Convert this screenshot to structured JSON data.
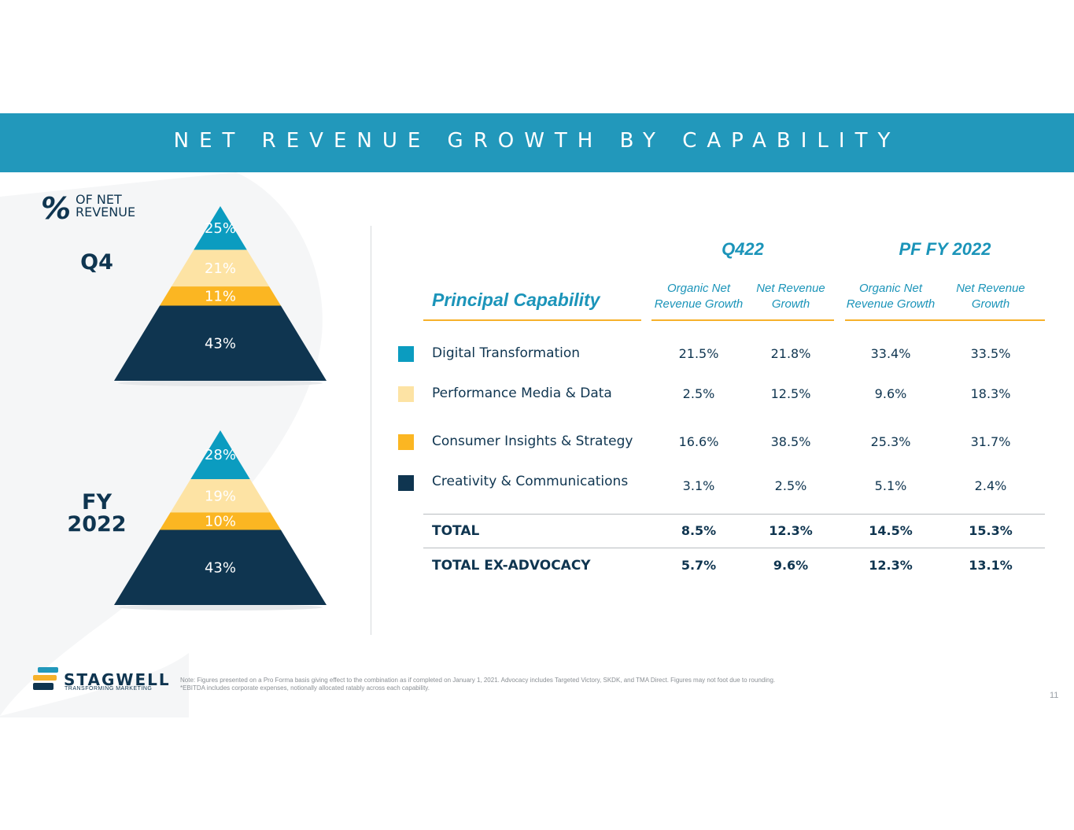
{
  "header": {
    "title": "NET REVENUE GROWTH BY CAPABILITY"
  },
  "percent_of_net_revenue": {
    "symbol": "%",
    "label": "OF NET REVENUE",
    "pyramids": [
      {
        "period": "Q4",
        "segments": [
          {
            "name": "Digital Transformation",
            "label": "25%",
            "value": 25
          },
          {
            "name": "Performance Media & Data",
            "label": "21%",
            "value": 21
          },
          {
            "name": "Consumer Insights & Strategy",
            "label": "11%",
            "value": 11
          },
          {
            "name": "Creativity & Communications",
            "label": "43%",
            "value": 43
          }
        ]
      },
      {
        "period": "FY 2022",
        "segments": [
          {
            "name": "Digital Transformation",
            "label": "28%",
            "value": 28
          },
          {
            "name": "Performance Media & Data",
            "label": "19%",
            "value": 19
          },
          {
            "name": "Consumer Insights & Strategy",
            "label": "10%",
            "value": 10
          },
          {
            "name": "Creativity & Communications",
            "label": "43%",
            "value": 43
          }
        ]
      }
    ]
  },
  "table": {
    "capability_header": "Principal Capability",
    "groups": [
      "Q422",
      "PF FY 2022"
    ],
    "columns": [
      {
        "l1": "Organic Net",
        "l2": "Revenue Growth"
      },
      {
        "l1": "Net Revenue",
        "l2": "Growth"
      },
      {
        "l1": "Organic Net",
        "l2": "Revenue Growth"
      },
      {
        "l1": "Net Revenue",
        "l2": "Growth"
      }
    ],
    "rows": [
      {
        "label": "Digital Transformation",
        "values": [
          "21.5%",
          "21.8%",
          "33.4%",
          "33.5%"
        ]
      },
      {
        "label": "Performance Media & Data",
        "values": [
          "2.5%",
          "12.5%",
          "9.6%",
          "18.3%"
        ]
      },
      {
        "label": "Consumer Insights & Strategy",
        "values": [
          "16.6%",
          "38.5%",
          "25.3%",
          "31.7%"
        ]
      },
      {
        "label": "Creativity & Communications",
        "values": [
          "3.1%",
          "2.5%",
          "5.1%",
          "2.4%"
        ]
      },
      {
        "label": "TOTAL",
        "values": [
          "8.5%",
          "12.3%",
          "14.5%",
          "15.3%"
        ]
      },
      {
        "label": "TOTAL EX-ADVOCACY",
        "values": [
          "5.7%",
          "9.6%",
          "12.3%",
          "13.1%"
        ]
      }
    ]
  },
  "colors": {
    "banner": "#2298bb",
    "accent_text": "#1b94b9",
    "underline": "#f6b12b",
    "navy": "#0f3550",
    "digital_transformation": "#0b9cc0",
    "performance_media": "#fde3a4",
    "consumer_insights": "#fbb622",
    "creativity": "#0f3550"
  },
  "chart_data": [
    {
      "type": "pyramid",
      "title": "Q4",
      "categories": [
        "Digital Transformation",
        "Performance Media & Data",
        "Consumer Insights & Strategy",
        "Creativity & Communications"
      ],
      "values": [
        25,
        21,
        11,
        43
      ]
    },
    {
      "type": "pyramid",
      "title": "FY 2022",
      "categories": [
        "Digital Transformation",
        "Performance Media & Data",
        "Consumer Insights & Strategy",
        "Creativity & Communications"
      ],
      "values": [
        28,
        19,
        10,
        43
      ]
    },
    {
      "type": "table",
      "columns": [
        "Principal Capability",
        "Q422 Organic Net Revenue Growth",
        "Q422 Net Revenue Growth",
        "PF FY 2022 Organic Net Revenue Growth",
        "PF FY 2022 Net Revenue Growth"
      ],
      "rows": [
        [
          "Digital Transformation",
          "21.5%",
          "21.8%",
          "33.4%",
          "33.5%"
        ],
        [
          "Performance Media & Data",
          "2.5%",
          "12.5%",
          "9.6%",
          "18.3%"
        ],
        [
          "Consumer Insights & Strategy",
          "16.6%",
          "38.5%",
          "25.3%",
          "31.7%"
        ],
        [
          "Creativity & Communications",
          "3.1%",
          "2.5%",
          "5.1%",
          "2.4%"
        ],
        [
          "TOTAL",
          "8.5%",
          "12.3%",
          "14.5%",
          "15.3%"
        ],
        [
          "TOTAL EX-ADVOCACY",
          "5.7%",
          "9.6%",
          "12.3%",
          "13.1%"
        ]
      ]
    }
  ],
  "footer": {
    "logo_word": "STAGWELL",
    "logo_tagline": "TRANSFORMING MARKETING",
    "note_line1": "Note: Figures presented on a Pro Forma basis giving effect to the combination as if completed on January 1, 2021.  Advocacy includes Targeted Victory, SKDK, and TMA Direct. Figures may not foot due to rounding.",
    "note_line2": "*EBITDA includes corporate expenses, notionally allocated ratably across each capability.",
    "page_number": "11"
  }
}
